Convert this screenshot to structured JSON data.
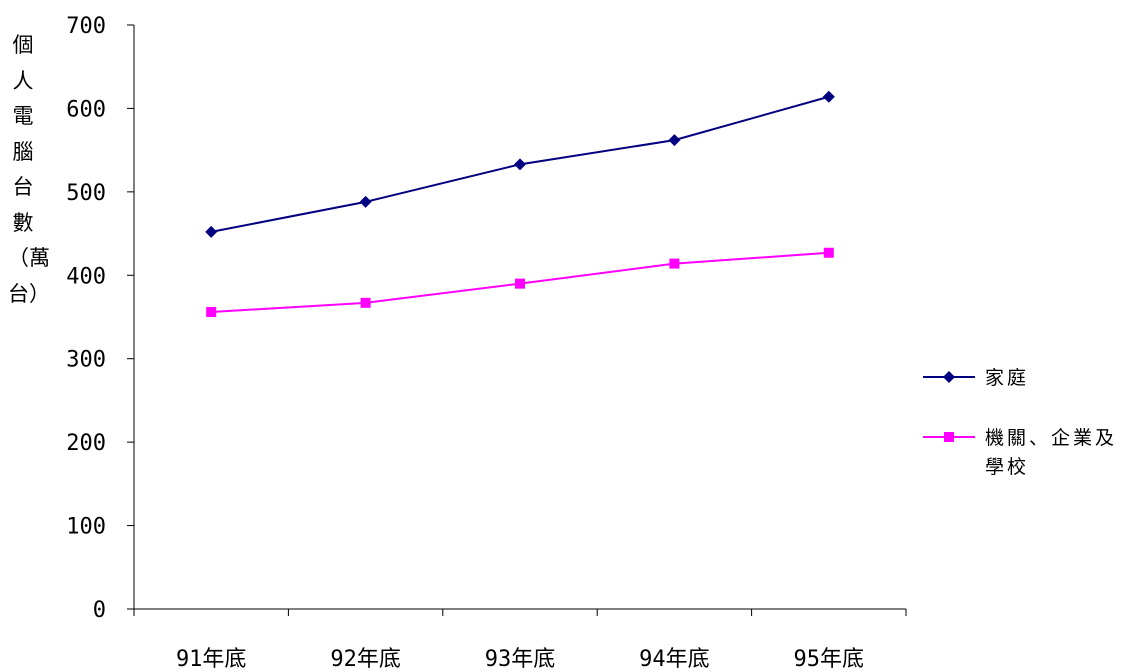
{
  "chart_data": {
    "type": "line",
    "title": "",
    "xlabel": "",
    "ylabel": "個人電腦台數（萬台）",
    "categories": [
      "91年底",
      "92年底",
      "93年底",
      "94年底",
      "95年底"
    ],
    "ylim": [
      0,
      700
    ],
    "yticks": [
      "0",
      "100",
      "200",
      "300",
      "400",
      "500",
      "600",
      "700"
    ],
    "grid": false,
    "legend_position": "right",
    "series": [
      {
        "name": "家庭",
        "values": [
          452,
          488,
          533,
          562,
          614
        ],
        "color": "#000080",
        "marker": "diamond"
      },
      {
        "name": "機關、企業及學校",
        "values": [
          356,
          367,
          390,
          414,
          427
        ],
        "color": "#FF00FF",
        "marker": "square"
      }
    ]
  }
}
